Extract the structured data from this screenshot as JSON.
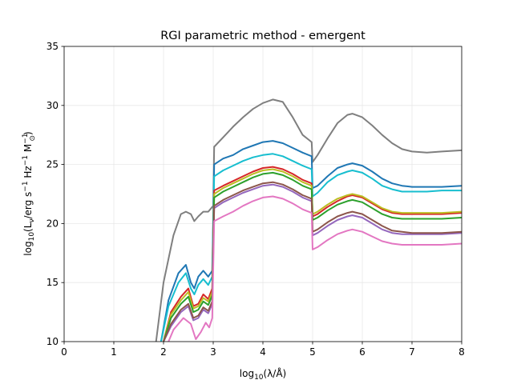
{
  "chart_data": {
    "type": "line",
    "title": "RGI parametric method - emergent",
    "xlabel": "log10(λ/Å)",
    "ylabel": "log10(Lν/erg s−1 Hz−1 M⊙−1)",
    "xlim": [
      0,
      8
    ],
    "ylim": [
      10,
      35
    ],
    "xticks": [
      "0",
      "1",
      "2",
      "3",
      "4",
      "5",
      "6",
      "7",
      "8"
    ],
    "yticks": [
      "10",
      "15",
      "20",
      "25",
      "30",
      "35"
    ],
    "grid": true,
    "series": [
      {
        "color": "#7f7f7f",
        "x": [
          1.85,
          2.0,
          2.2,
          2.35,
          2.45,
          2.55,
          2.62,
          2.7,
          2.8,
          2.9,
          3.0,
          3.02,
          3.2,
          3.4,
          3.6,
          3.8,
          4.0,
          4.2,
          4.4,
          4.6,
          4.8,
          4.98,
          5.0,
          5.1,
          5.3,
          5.5,
          5.7,
          5.8,
          6.0,
          6.2,
          6.4,
          6.6,
          6.8,
          7.0,
          7.3,
          7.6,
          8.0
        ],
        "y": [
          10.0,
          15.0,
          19.0,
          20.8,
          21.0,
          20.8,
          20.2,
          20.6,
          21.0,
          21.0,
          21.5,
          26.5,
          27.3,
          28.2,
          29.0,
          29.7,
          30.2,
          30.5,
          30.3,
          29.0,
          27.5,
          26.9,
          25.2,
          25.8,
          27.2,
          28.5,
          29.2,
          29.3,
          29.0,
          28.3,
          27.5,
          26.8,
          26.3,
          26.1,
          26.0,
          26.1,
          26.2
        ]
      },
      {
        "color": "#1f77b4",
        "x": [
          1.95,
          2.1,
          2.3,
          2.45,
          2.55,
          2.62,
          2.7,
          2.8,
          2.9,
          2.98,
          3.02,
          3.2,
          3.4,
          3.6,
          3.8,
          4.0,
          4.2,
          4.4,
          4.6,
          4.8,
          4.98,
          5.0,
          5.1,
          5.3,
          5.5,
          5.7,
          5.8,
          6.0,
          6.2,
          6.4,
          6.6,
          6.8,
          7.0,
          7.3,
          7.6,
          8.0
        ],
        "y": [
          10.0,
          13.5,
          15.8,
          16.5,
          15.0,
          14.5,
          15.5,
          16.0,
          15.5,
          16.0,
          25.0,
          25.5,
          25.8,
          26.3,
          26.6,
          26.9,
          27.0,
          26.8,
          26.4,
          26.0,
          25.7,
          23.0,
          23.2,
          24.0,
          24.7,
          25.0,
          25.1,
          24.9,
          24.4,
          23.8,
          23.4,
          23.2,
          23.1,
          23.1,
          23.1,
          23.2
        ]
      },
      {
        "color": "#17becf",
        "x": [
          1.95,
          2.1,
          2.3,
          2.45,
          2.55,
          2.62,
          2.7,
          2.8,
          2.9,
          2.98,
          3.02,
          3.2,
          3.4,
          3.6,
          3.8,
          4.0,
          4.2,
          4.4,
          4.6,
          4.8,
          4.98,
          5.0,
          5.1,
          5.3,
          5.5,
          5.7,
          5.8,
          6.0,
          6.2,
          6.4,
          6.6,
          6.8,
          7.0,
          7.3,
          7.6,
          8.0
        ],
        "y": [
          10.0,
          13.0,
          15.0,
          15.8,
          14.5,
          14.0,
          14.8,
          15.3,
          14.8,
          15.5,
          24.0,
          24.5,
          24.9,
          25.3,
          25.6,
          25.8,
          25.9,
          25.7,
          25.3,
          24.9,
          24.6,
          22.3,
          22.6,
          23.5,
          24.1,
          24.4,
          24.5,
          24.3,
          23.8,
          23.2,
          22.9,
          22.7,
          22.7,
          22.7,
          22.8,
          22.8
        ]
      },
      {
        "color": "#d62728",
        "x": [
          2.0,
          2.15,
          2.35,
          2.5,
          2.6,
          2.7,
          2.8,
          2.9,
          2.98,
          3.02,
          3.2,
          3.4,
          3.6,
          3.8,
          4.0,
          4.2,
          4.4,
          4.6,
          4.8,
          4.98,
          5.0,
          5.1,
          5.3,
          5.5,
          5.7,
          5.8,
          6.0,
          6.2,
          6.4,
          6.6,
          6.8,
          7.0,
          7.3,
          7.6,
          8.0
        ],
        "y": [
          10.0,
          12.5,
          13.8,
          14.5,
          13.0,
          13.2,
          14.0,
          13.6,
          14.5,
          22.8,
          23.2,
          23.6,
          24.0,
          24.4,
          24.7,
          24.8,
          24.6,
          24.2,
          23.7,
          23.4,
          20.6,
          20.8,
          21.4,
          21.9,
          22.3,
          22.4,
          22.2,
          21.7,
          21.2,
          20.9,
          20.8,
          20.8,
          20.8,
          20.8,
          20.9
        ]
      },
      {
        "color": "#bcbd22",
        "x": [
          2.0,
          2.15,
          2.35,
          2.5,
          2.6,
          2.7,
          2.8,
          2.9,
          2.98,
          3.02,
          3.2,
          3.4,
          3.6,
          3.8,
          4.0,
          4.2,
          4.4,
          4.6,
          4.8,
          4.98,
          5.0,
          5.1,
          5.3,
          5.5,
          5.7,
          5.8,
          6.0,
          6.2,
          6.4,
          6.6,
          6.8,
          7.0,
          7.3,
          7.6,
          8.0
        ],
        "y": [
          10.0,
          12.3,
          13.5,
          14.2,
          12.8,
          13.0,
          13.7,
          13.4,
          14.2,
          22.5,
          23.0,
          23.4,
          23.8,
          24.2,
          24.5,
          24.6,
          24.4,
          24.0,
          23.5,
          23.2,
          20.8,
          21.0,
          21.6,
          22.1,
          22.4,
          22.5,
          22.3,
          21.8,
          21.3,
          21.0,
          20.9,
          20.9,
          20.9,
          20.9,
          21.0
        ]
      },
      {
        "color": "#2ca02c",
        "x": [
          2.0,
          2.15,
          2.35,
          2.5,
          2.6,
          2.7,
          2.8,
          2.9,
          2.98,
          3.02,
          3.2,
          3.4,
          3.6,
          3.8,
          4.0,
          4.2,
          4.4,
          4.6,
          4.8,
          4.98,
          5.0,
          5.1,
          5.3,
          5.5,
          5.7,
          5.8,
          6.0,
          6.2,
          6.4,
          6.6,
          6.8,
          7.0,
          7.3,
          7.6,
          8.0
        ],
        "y": [
          10.0,
          12.0,
          13.2,
          13.8,
          12.5,
          12.7,
          13.4,
          13.1,
          13.9,
          22.2,
          22.7,
          23.1,
          23.5,
          23.9,
          24.2,
          24.3,
          24.1,
          23.7,
          23.2,
          22.9,
          20.3,
          20.5,
          21.1,
          21.6,
          21.9,
          22.0,
          21.8,
          21.3,
          20.8,
          20.5,
          20.4,
          20.4,
          20.4,
          20.4,
          20.5
        ]
      },
      {
        "color": "#9467bd",
        "x": [
          2.0,
          2.15,
          2.35,
          2.5,
          2.6,
          2.7,
          2.8,
          2.9,
          2.98,
          3.02,
          3.2,
          3.4,
          3.6,
          3.8,
          4.0,
          4.2,
          4.4,
          4.6,
          4.8,
          4.98,
          5.0,
          5.1,
          5.3,
          5.5,
          5.7,
          5.8,
          6.0,
          6.2,
          6.4,
          6.6,
          6.8,
          7.0,
          7.3,
          7.6,
          8.0
        ],
        "y": [
          10.0,
          11.3,
          12.5,
          13.0,
          11.8,
          12.0,
          12.7,
          12.4,
          13.2,
          21.3,
          21.8,
          22.2,
          22.6,
          22.9,
          23.2,
          23.3,
          23.1,
          22.7,
          22.2,
          21.9,
          19.0,
          19.2,
          19.8,
          20.3,
          20.6,
          20.7,
          20.5,
          20.0,
          19.5,
          19.2,
          19.1,
          19.1,
          19.1,
          19.1,
          19.2
        ]
      },
      {
        "color": "#8c564b",
        "x": [
          2.0,
          2.15,
          2.35,
          2.5,
          2.6,
          2.7,
          2.8,
          2.9,
          2.98,
          3.02,
          3.2,
          3.4,
          3.6,
          3.8,
          4.0,
          4.2,
          4.4,
          4.6,
          4.8,
          4.98,
          5.0,
          5.1,
          5.3,
          5.5,
          5.7,
          5.8,
          6.0,
          6.2,
          6.4,
          6.6,
          6.8,
          7.0,
          7.3,
          7.6,
          8.0
        ],
        "y": [
          10.0,
          11.5,
          12.7,
          13.2,
          12.0,
          12.2,
          12.9,
          12.6,
          13.4,
          21.5,
          22.0,
          22.4,
          22.8,
          23.1,
          23.4,
          23.5,
          23.3,
          22.9,
          22.4,
          22.1,
          19.3,
          19.5,
          20.1,
          20.6,
          20.9,
          21.0,
          20.8,
          20.3,
          19.8,
          19.4,
          19.3,
          19.2,
          19.2,
          19.2,
          19.3
        ]
      },
      {
        "color": "#e377c2",
        "x": [
          2.1,
          2.2,
          2.4,
          2.55,
          2.65,
          2.75,
          2.85,
          2.92,
          2.98,
          3.02,
          3.2,
          3.4,
          3.6,
          3.8,
          4.0,
          4.2,
          4.4,
          4.6,
          4.8,
          4.98,
          5.0,
          5.1,
          5.3,
          5.5,
          5.7,
          5.8,
          6.0,
          6.2,
          6.4,
          6.6,
          6.8,
          7.0,
          7.3,
          7.6,
          8.0
        ],
        "y": [
          10.0,
          11.0,
          12.0,
          11.5,
          10.2,
          10.8,
          11.6,
          11.2,
          12.0,
          20.2,
          20.6,
          21.0,
          21.5,
          21.9,
          22.2,
          22.3,
          22.1,
          21.7,
          21.2,
          20.9,
          17.8,
          18.0,
          18.6,
          19.1,
          19.4,
          19.5,
          19.3,
          18.9,
          18.5,
          18.3,
          18.2,
          18.2,
          18.2,
          18.2,
          18.3
        ]
      }
    ]
  }
}
